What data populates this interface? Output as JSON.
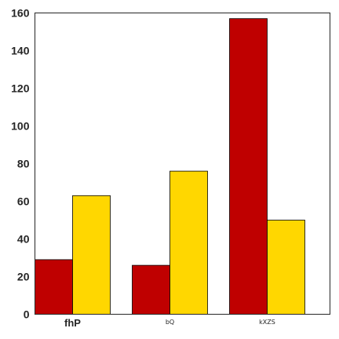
{
  "chart_data": {
    "type": "bar",
    "categories": [
      "fhP",
      "bQ",
      "kXZS"
    ],
    "series": [
      {
        "values": [
          29,
          26,
          157
        ],
        "color": "#bf0000"
      },
      {
        "values": [
          63,
          76,
          50
        ],
        "color": "#ffd700"
      }
    ],
    "ylim": [
      0,
      160
    ],
    "yticks": [
      "0",
      "20",
      "40",
      "60",
      "80",
      "100",
      "120",
      "140",
      "160"
    ],
    "grid": false,
    "legend": "none"
  }
}
